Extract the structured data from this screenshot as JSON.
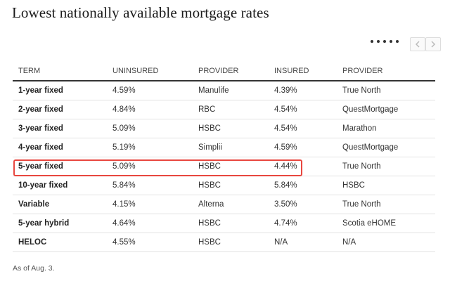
{
  "title": "Lowest nationally available mortgage rates",
  "pager": {
    "dots": 5,
    "prev_icon": "chevron-left-icon",
    "next_icon": "chevron-right-icon"
  },
  "table": {
    "headers": [
      "TERM",
      "UNINSURED",
      "PROVIDER",
      "INSURED",
      "PROVIDER"
    ],
    "rows": [
      [
        "1-year fixed",
        "4.59%",
        "Manulife",
        "4.39%",
        "True North"
      ],
      [
        "2-year fixed",
        "4.84%",
        "RBC",
        "4.54%",
        "QuestMortgage"
      ],
      [
        "3-year fixed",
        "5.09%",
        "HSBC",
        "4.54%",
        "Marathon"
      ],
      [
        "4-year fixed",
        "5.19%",
        "Simplii",
        "4.59%",
        "QuestMortgage"
      ],
      [
        "5-year fixed",
        "5.09%",
        "HSBC",
        "4.44%",
        "True North"
      ],
      [
        "10-year fixed",
        "5.84%",
        "HSBC",
        "5.84%",
        "HSBC"
      ],
      [
        "Variable",
        "4.15%",
        "Alterna",
        "3.50%",
        "True North"
      ],
      [
        "5-year hybrid",
        "4.64%",
        "HSBC",
        "4.74%",
        "Scotia eHOME"
      ],
      [
        "HELOC",
        "4.55%",
        "HSBC",
        "N/A",
        "N/A"
      ]
    ],
    "highlighted_row": 4,
    "highlight_color": "#e8473f"
  },
  "footnote": "As of Aug. 3."
}
